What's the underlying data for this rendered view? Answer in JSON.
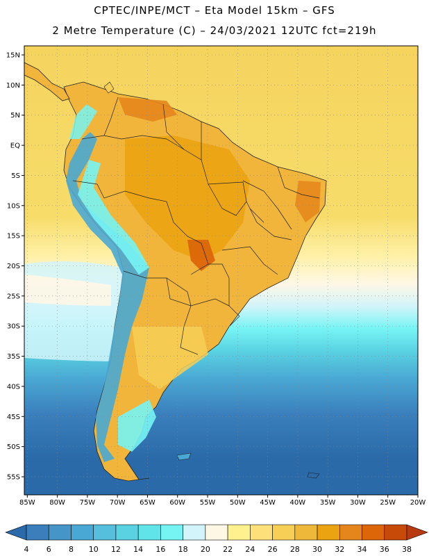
{
  "header": {
    "title_line1": "CPTEC/INPE/MCT –  Eta Model 15km – GFS",
    "title_line2": "2 Metre Temperature (C) – 24/03/2021 12UTC fct=219h"
  },
  "map": {
    "lat_labels": [
      "15N",
      "10N",
      "5N",
      "EQ",
      "5S",
      "10S",
      "15S",
      "20S",
      "25S",
      "30S",
      "35S",
      "40S",
      "45S",
      "50S",
      "55S"
    ],
    "lon_labels": [
      "85W",
      "80W",
      "75W",
      "70W",
      "65W",
      "60W",
      "55W",
      "50W",
      "45W",
      "40W",
      "35W",
      "30W",
      "25W",
      "20W"
    ],
    "lat_values": [
      15,
      10,
      5,
      0,
      -5,
      -10,
      -15,
      -20,
      -25,
      -30,
      -35,
      -40,
      -45,
      -50,
      -55
    ],
    "lon_values": [
      -85,
      -80,
      -75,
      -70,
      -65,
      -60,
      -55,
      -50,
      -45,
      -40,
      -35,
      -30,
      -25,
      -20
    ],
    "extent": {
      "lon_min": -85.5,
      "lon_max": -20,
      "lat_min": -58,
      "lat_max": 16.5
    },
    "grid": true,
    "variable": "2 Metre Temperature",
    "unit": "C"
  },
  "colorbar": {
    "labels": [
      "4",
      "6",
      "8",
      "10",
      "12",
      "14",
      "16",
      "18",
      "20",
      "22",
      "24",
      "26",
      "28",
      "30",
      "32",
      "34",
      "36",
      "38"
    ],
    "colors": [
      "#2a6aa8",
      "#3a7fbc",
      "#4595c8",
      "#4aa9d4",
      "#55bfdd",
      "#5ad2e2",
      "#60e4ea",
      "#76f4f4",
      "#d2f4fa",
      "#fff7e6",
      "#fff28e",
      "#fee07a",
      "#f7cf57",
      "#eeb83a",
      "#eba312",
      "#e5861c",
      "#dc6608",
      "#c84a08",
      "#b83a10"
    ]
  }
}
